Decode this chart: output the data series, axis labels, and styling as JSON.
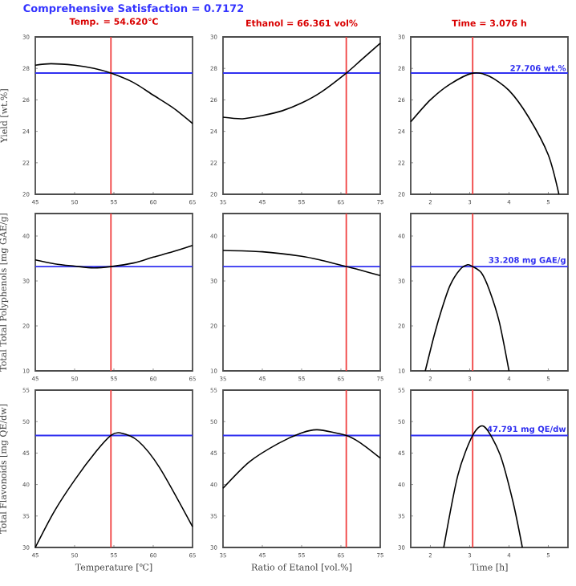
{
  "chart_data": [
    {
      "type": "line",
      "title": "Temp. = 54.620℃",
      "ylabel": "Yield [wt.%]",
      "annotations": [
        "Comprehensive Satisfaction = 0.7172"
      ],
      "xlim": [
        45,
        65
      ],
      "xticks": [
        45,
        50,
        55,
        60,
        65
      ],
      "ylim": [
        20,
        30
      ],
      "yticks": [
        20,
        22,
        24,
        26,
        28,
        30
      ],
      "color": "#000000",
      "x": [
        45,
        47,
        50,
        52.5,
        54.62,
        57.5,
        60,
        62.5,
        65
      ],
      "values": [
        28.2,
        28.3,
        28.2,
        28.0,
        27.7,
        27.1,
        26.3,
        25.5,
        24.5
      ],
      "ref_lines": [
        {
          "axis": "x",
          "value": 54.62,
          "color": "#f04040"
        },
        {
          "axis": "y",
          "value": 27.706,
          "color": "#3030f0"
        }
      ]
    },
    {
      "type": "line",
      "title": "Ethanol = 66.361 vol%",
      "xlim": [
        35,
        75
      ],
      "xticks": [
        35,
        45,
        55,
        65,
        75
      ],
      "ylim": [
        20,
        30
      ],
      "yticks": [
        20,
        22,
        24,
        26,
        28,
        30
      ],
      "color": "#000000",
      "x": [
        35,
        40,
        45,
        50,
        55,
        60,
        66.361,
        70,
        75
      ],
      "values": [
        24.9,
        24.8,
        25.0,
        25.3,
        25.8,
        26.5,
        27.7,
        28.5,
        29.6
      ],
      "ref_lines": [
        {
          "axis": "x",
          "value": 66.361,
          "color": "#f04040"
        },
        {
          "axis": "y",
          "value": 27.706,
          "color": "#3030f0"
        }
      ]
    },
    {
      "type": "line",
      "title": "Time = 3.076 h",
      "xlim": [
        1.5,
        5.5
      ],
      "xticks": [
        2,
        3,
        4,
        5
      ],
      "ylim": [
        20,
        30
      ],
      "yticks": [
        20,
        22,
        24,
        26,
        28,
        30
      ],
      "color": "#000000",
      "x": [
        1.5,
        2,
        2.5,
        3.076,
        3.5,
        4,
        4.5,
        5,
        5.27
      ],
      "values": [
        24.6,
        26.0,
        27.0,
        27.7,
        27.5,
        26.6,
        24.9,
        22.5,
        20
      ],
      "ref_lines": [
        {
          "axis": "x",
          "value": 3.076,
          "color": "#f04040"
        },
        {
          "axis": "y",
          "value": 27.706,
          "color": "#3030f0",
          "label": "27.706 wt.%"
        }
      ]
    },
    {
      "type": "line",
      "ylabel": "Total Total Polyphenols [mg GAE/g]",
      "xlim": [
        45,
        65
      ],
      "xticks": [
        45,
        50,
        55,
        60,
        65
      ],
      "ylim": [
        10,
        45
      ],
      "yticks": [
        10,
        20,
        30,
        40
      ],
      "color": "#000000",
      "x": [
        45,
        47.5,
        50,
        52.4,
        54.62,
        57.5,
        60,
        62.5,
        65
      ],
      "values": [
        34.7,
        33.8,
        33.3,
        32.9,
        33.2,
        34.0,
        35.3,
        36.5,
        37.9
      ],
      "ref_lines": [
        {
          "axis": "x",
          "value": 54.62,
          "color": "#f04040"
        },
        {
          "axis": "y",
          "value": 33.208,
          "color": "#3030f0"
        }
      ]
    },
    {
      "type": "line",
      "xlim": [
        35,
        75
      ],
      "xticks": [
        35,
        45,
        55,
        65,
        75
      ],
      "ylim": [
        10,
        45
      ],
      "yticks": [
        10,
        20,
        30,
        40
      ],
      "color": "#000000",
      "x": [
        35,
        45,
        55,
        60,
        66.361,
        70,
        75
      ],
      "values": [
        36.8,
        36.5,
        35.5,
        34.6,
        33.2,
        32.4,
        31.2
      ],
      "ref_lines": [
        {
          "axis": "x",
          "value": 66.361,
          "color": "#f04040"
        },
        {
          "axis": "y",
          "value": 33.208,
          "color": "#3030f0"
        }
      ]
    },
    {
      "type": "line",
      "xlim": [
        1.5,
        5.5
      ],
      "xticks": [
        2,
        3,
        4,
        5
      ],
      "ylim": [
        10,
        45
      ],
      "yticks": [
        10,
        20,
        30,
        40
      ],
      "color": "#000000",
      "x": [
        1.87,
        2.1,
        2.3,
        2.5,
        2.75,
        2.95,
        3.076,
        3.3,
        3.5,
        3.75,
        4.0
      ],
      "values": [
        10,
        18,
        24,
        29,
        32.5,
        33.6,
        33.2,
        31.8,
        28,
        21,
        10
      ],
      "ref_lines": [
        {
          "axis": "x",
          "value": 3.076,
          "color": "#f04040"
        },
        {
          "axis": "y",
          "value": 33.208,
          "color": "#3030f0",
          "label": "33.208 mg GAE/g"
        }
      ]
    },
    {
      "type": "line",
      "ylabel": "Total Flavonoids [mg QE/dw]",
      "xlabel": "Temperature [℃]",
      "xlim": [
        45,
        65
      ],
      "xticks": [
        45,
        50,
        55,
        60,
        65
      ],
      "ylim": [
        30,
        55
      ],
      "yticks": [
        30,
        35,
        40,
        45,
        50,
        55
      ],
      "color": "#000000",
      "x": [
        45,
        47.4,
        50,
        52.7,
        54.62,
        55.8,
        58.1,
        60.8,
        65
      ],
      "values": [
        30,
        35.7,
        40.7,
        45.2,
        47.8,
        48.2,
        46.9,
        42.7,
        33.3
      ],
      "ref_lines": [
        {
          "axis": "x",
          "value": 54.62,
          "color": "#f04040"
        },
        {
          "axis": "y",
          "value": 47.791,
          "color": "#3030f0"
        }
      ]
    },
    {
      "type": "line",
      "xlabel": "Ratio of Etanol [vol.%]",
      "xlim": [
        35,
        75
      ],
      "xticks": [
        35,
        45,
        55,
        65,
        75
      ],
      "ylim": [
        30,
        55
      ],
      "yticks": [
        30,
        35,
        40,
        45,
        50,
        55
      ],
      "color": "#000000",
      "x": [
        35,
        41.7,
        49,
        55,
        59,
        66.361,
        70,
        75
      ],
      "values": [
        39.4,
        43.6,
        46.5,
        48.2,
        48.7,
        47.8,
        46.6,
        44.2
      ],
      "ref_lines": [
        {
          "axis": "x",
          "value": 66.361,
          "color": "#f04040"
        },
        {
          "axis": "y",
          "value": 47.791,
          "color": "#3030f0"
        }
      ]
    },
    {
      "type": "line",
      "xlabel": "Time [h]",
      "xlim": [
        1.5,
        5.5
      ],
      "xticks": [
        2,
        3,
        4,
        5
      ],
      "ylim": [
        30,
        55
      ],
      "yticks": [
        30,
        35,
        40,
        45,
        50,
        55
      ],
      "color": "#000000",
      "x": [
        2.34,
        2.7,
        3.076,
        3.37,
        3.77,
        4.1,
        4.34
      ],
      "values": [
        30,
        41.5,
        47.8,
        49.2,
        44.8,
        37.3,
        30
      ],
      "ref_lines": [
        {
          "axis": "x",
          "value": 3.076,
          "color": "#f04040"
        },
        {
          "axis": "y",
          "value": 47.791,
          "color": "#3030f0",
          "label": "47.791 mg QE/dw"
        }
      ]
    }
  ]
}
